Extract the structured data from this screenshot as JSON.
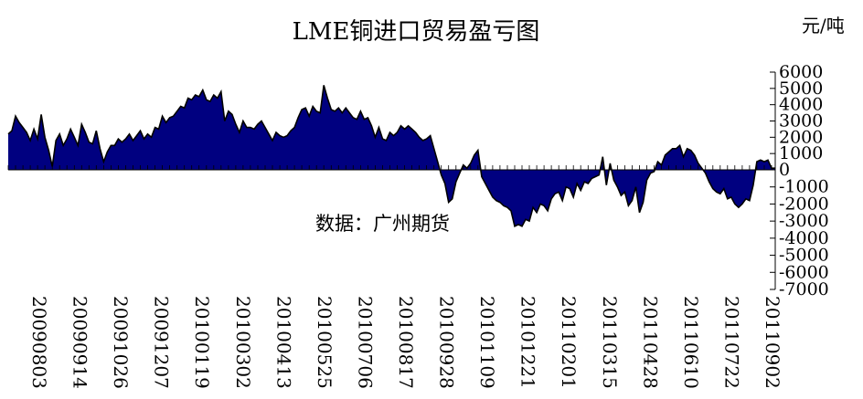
{
  "chart_data": {
    "type": "area",
    "title": "LME铜进口贸易盈亏图",
    "unit": "元/吨",
    "annotation": "数据：广州期货",
    "ylabel": "",
    "xlabel": "",
    "ylim": [
      -7000,
      6000
    ],
    "yticks": [
      6000,
      5000,
      4000,
      3000,
      2000,
      1000,
      0,
      -1000,
      -2000,
      -3000,
      -4000,
      -5000,
      -6000,
      -7000
    ],
    "x_tick_labels": [
      "20090803",
      "20090914",
      "20091026",
      "20091207",
      "20100119",
      "20100302",
      "20100413",
      "20100525",
      "20100706",
      "20100817",
      "20100928",
      "20101109",
      "20101221",
      "20110201",
      "20110315",
      "20110428",
      "20110610",
      "20110722",
      "20110902"
    ],
    "colors": {
      "fill": "#000080",
      "line": "#000000"
    },
    "series": [
      {
        "name": "",
        "x_start": "20090803",
        "x_end": "20110907",
        "values": [
          2200,
          2400,
          3300,
          2900,
          2600,
          2300,
          1800,
          2500,
          1900,
          3400,
          2000,
          1200,
          200,
          1800,
          2200,
          1500,
          1900,
          2500,
          2000,
          1500,
          2800,
          2300,
          1700,
          1600,
          2400,
          1300,
          500,
          1100,
          1500,
          1500,
          1900,
          1700,
          1900,
          2200,
          1800,
          2100,
          2400,
          1900,
          2200,
          2000,
          2600,
          2500,
          3300,
          2900,
          3200,
          3300,
          3600,
          3900,
          3800,
          4400,
          4300,
          4600,
          4500,
          4900,
          4300,
          4200,
          4600,
          4400,
          4800,
          3000,
          3600,
          3400,
          2800,
          2300,
          3000,
          2600,
          2600,
          2500,
          2800,
          3000,
          2600,
          2200,
          1800,
          2300,
          2100,
          2000,
          2100,
          2400,
          2600,
          3200,
          3700,
          3800,
          3300,
          3900,
          3600,
          3500,
          5200,
          4400,
          3700,
          3600,
          3800,
          3500,
          3800,
          3500,
          3200,
          3100,
          3600,
          3100,
          3200,
          2700,
          2000,
          2600,
          1900,
          1800,
          2300,
          2100,
          2300,
          2700,
          2500,
          2700,
          2500,
          2300,
          2000,
          1800,
          1900,
          2100,
          1300,
          500,
          -300,
          -800,
          -1900,
          -1700,
          -700,
          -200,
          300,
          100,
          400,
          900,
          1200,
          -400,
          -800,
          -1200,
          -1600,
          -1800,
          -1900,
          -2100,
          -2200,
          -2400,
          -3300,
          -3200,
          -3300,
          -2900,
          -3000,
          -2200,
          -2500,
          -2000,
          -2100,
          -2400,
          -1700,
          -1400,
          -1300,
          -1800,
          -1000,
          -1100,
          -1600,
          -800,
          -1200,
          -700,
          -800,
          -500,
          -400,
          -300,
          800,
          -900,
          400,
          -600,
          -1000,
          -1500,
          -1300,
          -2100,
          -1800,
          -1000,
          -2500,
          -1900,
          -600,
          -200,
          -100,
          500,
          300,
          900,
          1100,
          1300,
          1300,
          1500,
          800,
          1300,
          1200,
          900,
          400,
          100,
          -200,
          -700,
          -1100,
          -1300,
          -1400,
          -1100,
          -1700,
          -1600,
          -2000,
          -2200,
          -2000,
          -1700,
          -1800,
          -900,
          500,
          600,
          500,
          600,
          100,
          100
        ]
      }
    ]
  }
}
